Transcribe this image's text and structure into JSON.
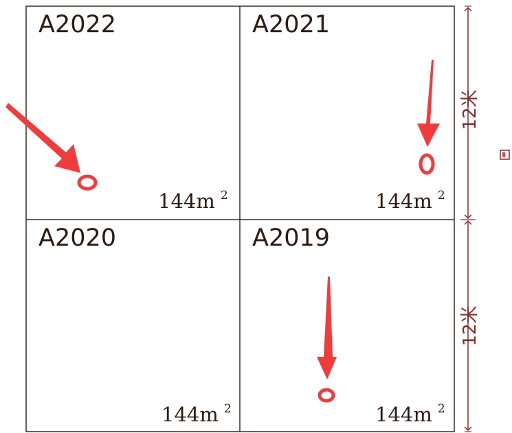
{
  "plots": [
    {
      "id": "A2022",
      "area": "144m",
      "area_sup": "2"
    },
    {
      "id": "A2021",
      "area": "144m",
      "area_sup": "2"
    },
    {
      "id": "A2020",
      "area": "144m",
      "area_sup": "2"
    },
    {
      "id": "A2019",
      "area": "144m",
      "area_sup": "2"
    }
  ],
  "dimensions": [
    {
      "label": "12米"
    },
    {
      "label": "12米"
    }
  ],
  "colors": {
    "border": "#3c2a20",
    "dimension": "#8e2a28",
    "marker": "#f03c3c"
  }
}
